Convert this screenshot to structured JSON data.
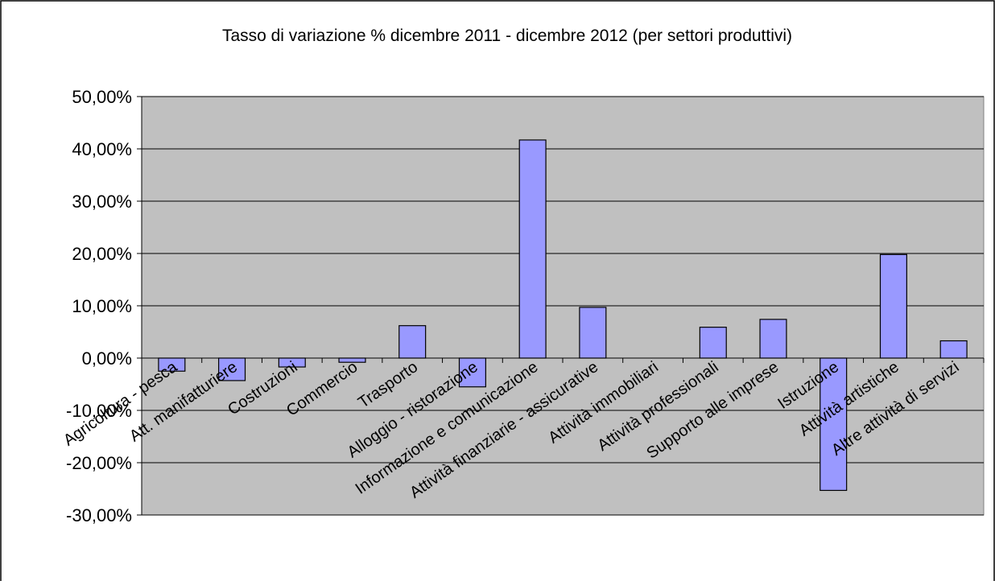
{
  "colors": {
    "plot_bg": "#c0c0c0",
    "bar_fill": "#9999ff",
    "bar_stroke": "#000000",
    "grid": "#000000",
    "border": "#000000"
  },
  "chart_data": {
    "type": "bar",
    "title": "Tasso di variazione % dicembre 2011 - dicembre 2012 (per settori produttivi)",
    "xlabel": "",
    "ylabel": "",
    "ylim": [
      -30,
      50
    ],
    "yticks": [
      50,
      40,
      30,
      20,
      10,
      0,
      -10,
      -20,
      -30
    ],
    "ytick_labels": [
      "50,00%",
      "40,00%",
      "30,00%",
      "20,00%",
      "10,00%",
      "0,00%",
      "-10,00%",
      "-20,00%",
      "-30,00%"
    ],
    "grid": true,
    "legend": "none",
    "categories": [
      "Agricoltura - pesca",
      "Att. manifatturiere",
      "Costruzioni",
      "Commercio",
      "Trasporto",
      "Alloggio - ristorazione",
      "Informazione e comunicazione",
      "Attività finanziarie - assicurative",
      "Attività immobiliari",
      "Attività professionali",
      "Supporto alle imprese",
      "Istruzione",
      "Attività artistiche",
      "Altre attività di servizi"
    ],
    "values": [
      -2.5,
      -4.3,
      -1.7,
      -0.8,
      6.2,
      -5.5,
      41.7,
      9.7,
      0.0,
      5.9,
      7.4,
      -25.3,
      19.8,
      3.3
    ]
  }
}
